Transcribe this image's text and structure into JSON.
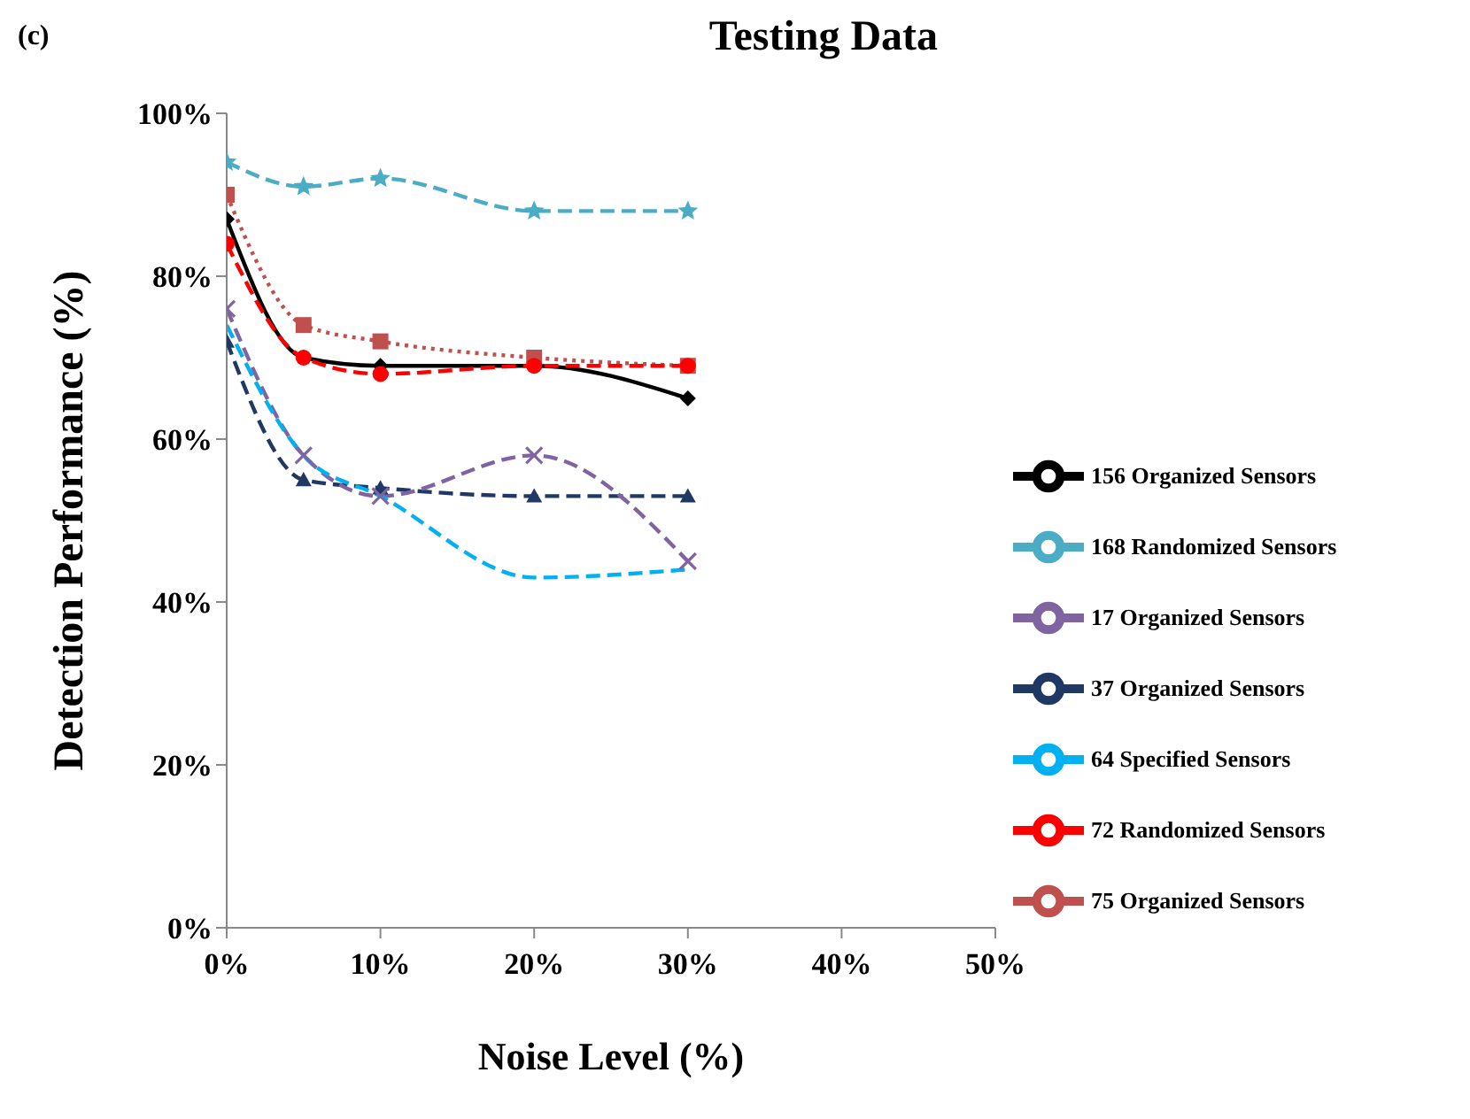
{
  "chart_data": {
    "type": "line",
    "title": "Testing Data",
    "xlabel": "Noise Level (%)",
    "ylabel": "Detection Performance (%)",
    "annotations": [
      "(c)"
    ],
    "x": [
      0,
      5,
      10,
      20,
      30
    ],
    "xlim": [
      0,
      50
    ],
    "xticks": [
      {
        "value": 0,
        "label": "0%"
      },
      {
        "value": 10,
        "label": "10%"
      },
      {
        "value": 20,
        "label": "20%"
      },
      {
        "value": 30,
        "label": "30%"
      },
      {
        "value": 40,
        "label": "40%"
      },
      {
        "value": 50,
        "label": "50%"
      }
    ],
    "ylim": [
      0,
      100
    ],
    "yticks": [
      {
        "value": 0,
        "label": "0%"
      },
      {
        "value": 20,
        "label": "20%"
      },
      {
        "value": 40,
        "label": "40%"
      },
      {
        "value": 60,
        "label": "60%"
      },
      {
        "value": 80,
        "label": "80%"
      },
      {
        "value": 100,
        "label": "100%"
      }
    ],
    "grid": false,
    "legend": "bottom right",
    "series": [
      {
        "name": "156 Organized Sensors",
        "color": "#000000",
        "marker": "diamond",
        "line_style": "solid",
        "values": [
          87,
          70,
          69,
          69,
          65
        ]
      },
      {
        "name": "75 Organized Sensors",
        "color": "#c0504d",
        "marker": "square",
        "line_style": "dotted",
        "values": [
          90,
          74,
          72,
          70,
          69
        ]
      },
      {
        "name": "37 Organized Sensors",
        "color": "#1f3864",
        "marker": "triangle",
        "line_style": "dashed",
        "values": [
          72,
          55,
          54,
          53,
          53
        ]
      },
      {
        "name": "17 Organized Sensors",
        "color": "#8064a2",
        "marker": "cross",
        "line_style": "dashed",
        "values": [
          76,
          58,
          53,
          58,
          45
        ]
      },
      {
        "name": "168 Randomized Sensors",
        "color": "#4bacc6",
        "marker": "star",
        "line_style": "dashed",
        "values": [
          94,
          91,
          92,
          88,
          88
        ]
      },
      {
        "name": "72 Randomized Sensors",
        "color": "#ff0000",
        "marker": "circle",
        "line_style": "dashed",
        "values": [
          84,
          70,
          68,
          69,
          69
        ]
      },
      {
        "name": "64 Specified Sensors",
        "color": "#00b0f0",
        "marker": "none",
        "line_style": "dashed",
        "values": [
          74,
          58,
          53,
          43,
          44
        ]
      }
    ]
  }
}
